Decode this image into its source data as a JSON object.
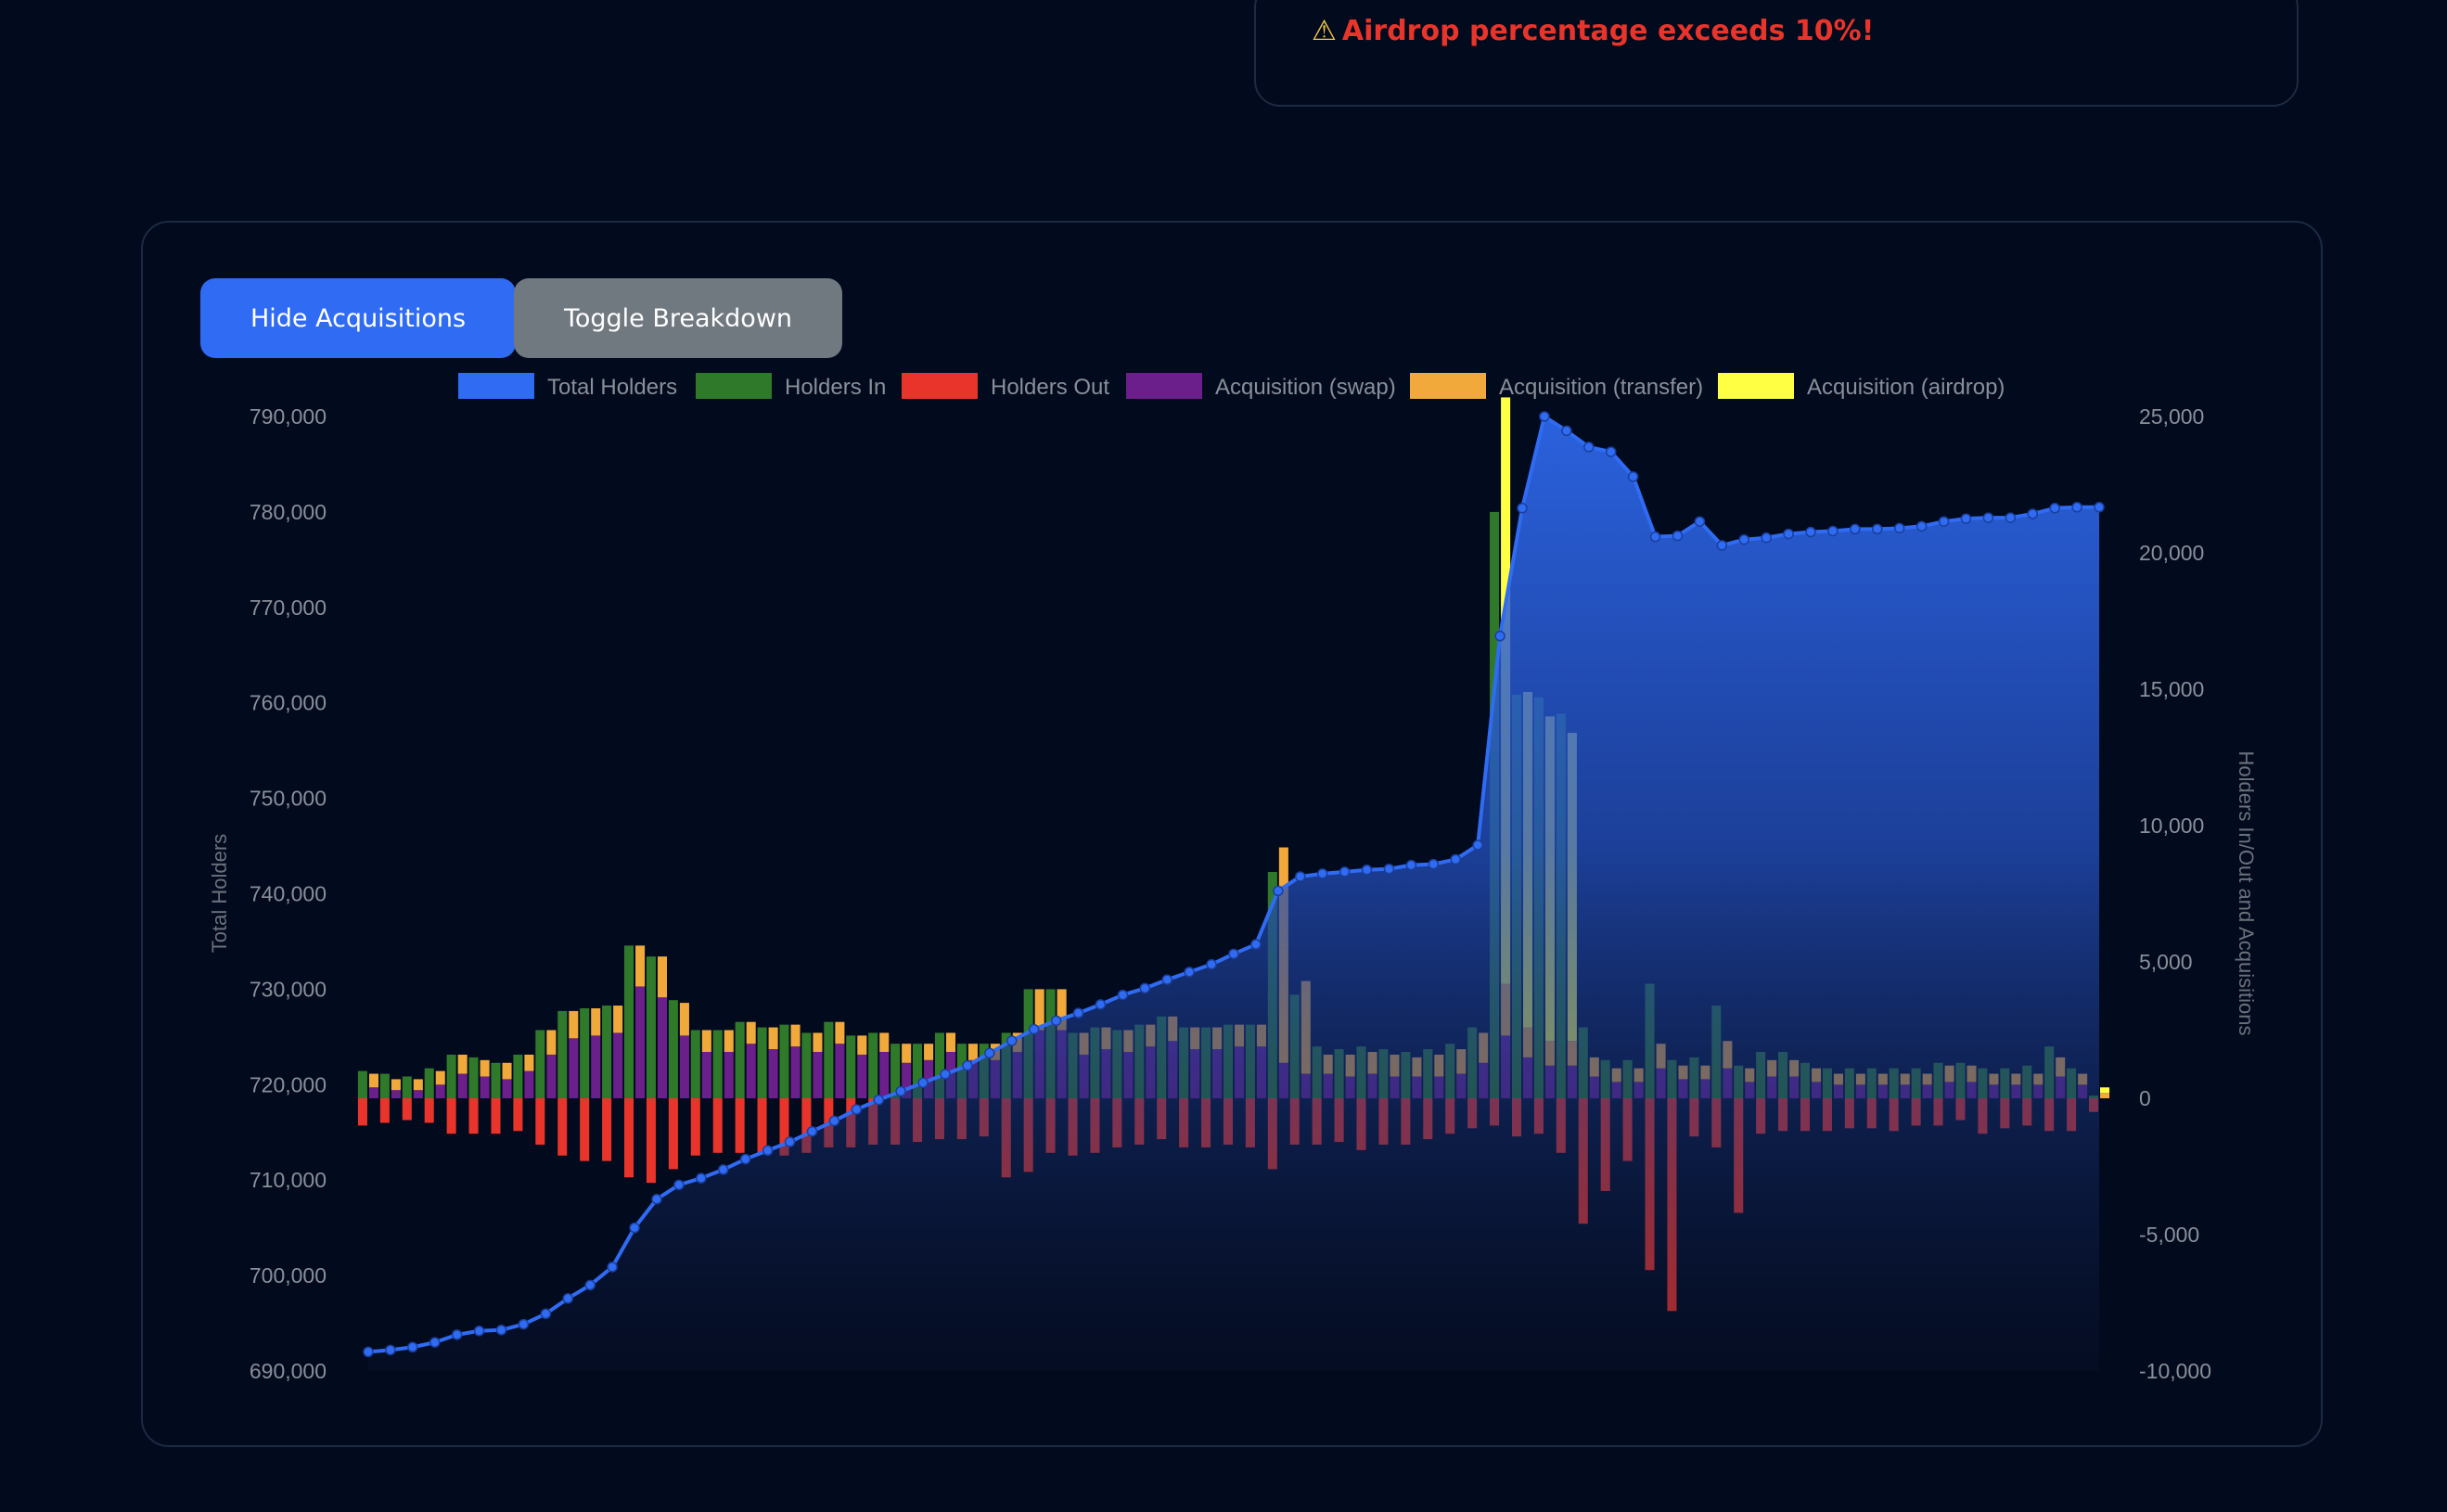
{
  "warning": {
    "icon": "warning-icon",
    "text": "Airdrop percentage exceeds 10%!"
  },
  "buttons": {
    "hide_acquisitions": "Hide Acquisitions",
    "toggle_breakdown": "Toggle Breakdown"
  },
  "chart_data": {
    "type": "bar",
    "legend": [
      "Total Holders",
      "Holders In",
      "Holders Out",
      "Acquisition (swap)",
      "Acquisition (transfer)",
      "Acquisition (airdrop)"
    ],
    "colors": {
      "total": "#2f6bf3",
      "in": "#2f7a2a",
      "out": "#e8342a",
      "swap": "#6a1f8a",
      "transfer": "#f0a93a",
      "airdrop": "#ffff44"
    },
    "y_left": {
      "label": "Total Holders",
      "range": [
        690000,
        790000
      ],
      "ticks": [
        "690,000",
        "700,000",
        "710,000",
        "720,000",
        "730,000",
        "740,000",
        "750,000",
        "760,000",
        "770,000",
        "780,000",
        "790,000"
      ]
    },
    "y_right": {
      "label": "Holders In/Out and Acquisitions",
      "range": [
        -10000,
        25000
      ],
      "ticks": [
        "-10,000",
        "-5,000",
        "0",
        "5,000",
        "10,000",
        "15,000",
        "20,000",
        "25,000"
      ]
    },
    "total_holders": [
      692000,
      692200,
      692500,
      693000,
      693800,
      694200,
      694300,
      694900,
      696000,
      697600,
      699000,
      700900,
      705000,
      708000,
      709500,
      710200,
      711100,
      712200,
      713100,
      714000,
      715100,
      716200,
      717400,
      718400,
      719300,
      720200,
      721100,
      722000,
      723300,
      724600,
      725800,
      726700,
      727500,
      728400,
      729400,
      730100,
      731000,
      731800,
      732600,
      733700,
      734700,
      740300,
      741800,
      742100,
      742300,
      742500,
      742600,
      743000,
      743100,
      743600,
      745100,
      767000,
      780400,
      790000,
      788500,
      786800,
      786300,
      783700,
      777400,
      777500,
      779000,
      776500,
      777100,
      777300,
      777700,
      777900,
      778000,
      778200,
      778200,
      778300,
      778500,
      779000,
      779300,
      779400,
      779400,
      779800,
      780400,
      780500,
      780500
    ],
    "holders_in": [
      1000,
      900,
      800,
      1100,
      1600,
      1500,
      1300,
      1600,
      2500,
      3200,
      3300,
      3400,
      5600,
      5200,
      3600,
      2500,
      2500,
      2800,
      2600,
      2700,
      2400,
      2800,
      2300,
      2400,
      2000,
      2000,
      2400,
      2000,
      2000,
      2400,
      4000,
      4000,
      2400,
      2600,
      2500,
      2700,
      3000,
      2600,
      2600,
      2700,
      2700,
      8300,
      3800,
      1900,
      1800,
      1900,
      1800,
      1700,
      1800,
      2000,
      2600,
      21500,
      14800,
      14700,
      14100,
      2600,
      1400,
      1400,
      4200,
      1400,
      1500,
      3400,
      1200,
      1700,
      1700,
      1300,
      1100,
      1100,
      1100,
      1100,
      1100,
      1300,
      1300,
      1100,
      1100,
      1200,
      1900,
      1100,
      100
    ],
    "holders_out": [
      -1000,
      -900,
      -800,
      -900,
      -1300,
      -1300,
      -1300,
      -1200,
      -1700,
      -2100,
      -2300,
      -2300,
      -2900,
      -3100,
      -2600,
      -2100,
      -2000,
      -2000,
      -2000,
      -2100,
      -2000,
      -1800,
      -1800,
      -1700,
      -1700,
      -1600,
      -1500,
      -1500,
      -1400,
      -2900,
      -2700,
      -2000,
      -2100,
      -2000,
      -1800,
      -1700,
      -1500,
      -1800,
      -1800,
      -1700,
      -1800,
      -2600,
      -1700,
      -1700,
      -1600,
      -1900,
      -1700,
      -1700,
      -1500,
      -1300,
      -1100,
      -1000,
      -1400,
      -1300,
      -2000,
      -4600,
      -3400,
      -2300,
      -6300,
      -7800,
      -1400,
      -1800,
      -4200,
      -1300,
      -1200,
      -1200,
      -1200,
      -1100,
      -1100,
      -1200,
      -1000,
      -1000,
      -800,
      -1300,
      -1100,
      -1000,
      -1200,
      -1200,
      -500
    ],
    "acq_swap": [
      400,
      300,
      300,
      500,
      900,
      800,
      700,
      1000,
      1600,
      2200,
      2300,
      2400,
      4100,
      3700,
      2300,
      1700,
      1700,
      2000,
      1800,
      1900,
      1700,
      2000,
      1600,
      1700,
      1300,
      1400,
      1700,
      1400,
      1400,
      1700,
      2500,
      2500,
      1600,
      1800,
      1700,
      1900,
      2100,
      1800,
      1800,
      1900,
      1900,
      1300,
      900,
      900,
      800,
      900,
      800,
      800,
      800,
      900,
      1300,
      2300,
      1500,
      1200,
      1200,
      800,
      600,
      600,
      1100,
      700,
      700,
      1100,
      600,
      800,
      800,
      600,
      500,
      500,
      500,
      500,
      500,
      600,
      600,
      500,
      500,
      500,
      800,
      500,
      0
    ],
    "acq_transfer": [
      500,
      400,
      400,
      500,
      700,
      600,
      600,
      600,
      900,
      1000,
      1000,
      1000,
      1500,
      1500,
      1200,
      800,
      800,
      800,
      800,
      800,
      700,
      800,
      700,
      700,
      700,
      600,
      700,
      600,
      600,
      700,
      1500,
      1500,
      800,
      800,
      800,
      800,
      900,
      800,
      800,
      800,
      800,
      7900,
      3400,
      700,
      800,
      800,
      800,
      700,
      800,
      900,
      1100,
      1900,
      1100,
      900,
      900,
      700,
      500,
      500,
      900,
      500,
      500,
      1000,
      500,
      600,
      600,
      500,
      400,
      400,
      400,
      400,
      400,
      600,
      600,
      400,
      400,
      400,
      700,
      400,
      200
    ],
    "acq_airdrop": [
      0,
      0,
      0,
      0,
      0,
      0,
      0,
      0,
      0,
      0,
      0,
      0,
      0,
      0,
      0,
      0,
      0,
      0,
      0,
      0,
      0,
      0,
      0,
      0,
      0,
      0,
      0,
      0,
      0,
      0,
      0,
      0,
      0,
      0,
      0,
      0,
      0,
      0,
      0,
      0,
      0,
      0,
      0,
      0,
      0,
      0,
      0,
      0,
      0,
      0,
      0,
      21500,
      12300,
      11900,
      11300,
      0,
      0,
      0,
      0,
      0,
      0,
      0,
      0,
      0,
      0,
      0,
      0,
      0,
      0,
      0,
      0,
      0,
      0,
      0,
      0,
      0,
      0,
      0,
      200
    ],
    "grid": false,
    "legend_position": "top"
  }
}
